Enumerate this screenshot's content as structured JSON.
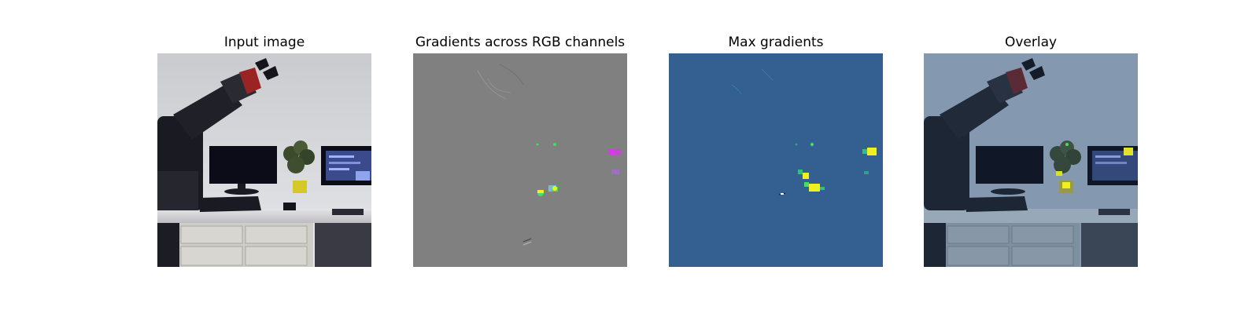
{
  "figure": {
    "panels": [
      {
        "title": "Input image"
      },
      {
        "title": "Gradients across RGB channels"
      },
      {
        "title": "Max gradients"
      },
      {
        "title": "Overlay"
      }
    ]
  },
  "colors": {
    "background": "#ffffff",
    "gradient_neutral_gray": "#808080",
    "max_gradient_base_blue": "#335f91",
    "highlight_yellow": "#f0f020",
    "highlight_green": "#40e060",
    "highlight_magenta": "#d040e0"
  }
}
